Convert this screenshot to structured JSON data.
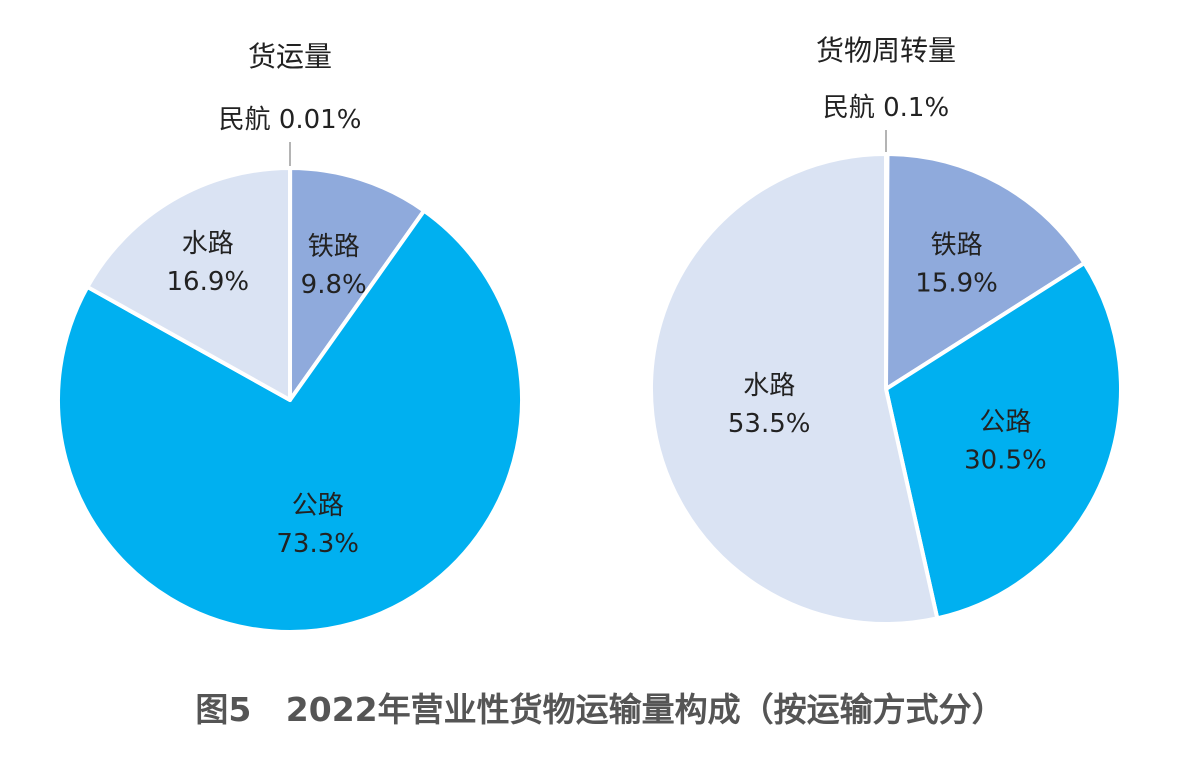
{
  "chart_data": [
    {
      "type": "pie",
      "title": "货运量",
      "slices": [
        {
          "name": "民航",
          "value": 0.01,
          "label": "0.01%",
          "color": "#8FAADC"
        },
        {
          "name": "铁路",
          "value": 9.8,
          "label": "9.8%",
          "color": "#8FAADC"
        },
        {
          "name": "公路",
          "value": 73.3,
          "label": "73.3%",
          "color": "#00B0F0"
        },
        {
          "name": "水路",
          "value": 16.9,
          "label": "16.9%",
          "color": "#DAE3F3"
        }
      ]
    },
    {
      "type": "pie",
      "title": "货物周转量",
      "slices": [
        {
          "name": "民航",
          "value": 0.1,
          "label": "0.1%",
          "color": "#8FAADC"
        },
        {
          "name": "铁路",
          "value": 15.9,
          "label": "15.9%",
          "color": "#8FAADC"
        },
        {
          "name": "公路",
          "value": 30.5,
          "label": "30.5%",
          "color": "#00B0F0"
        },
        {
          "name": "水路",
          "value": 53.5,
          "label": "53.5%",
          "color": "#DAE3F3"
        }
      ]
    }
  ],
  "caption": "图5   2022年营业性货物运输量构成（按运输方式分）"
}
